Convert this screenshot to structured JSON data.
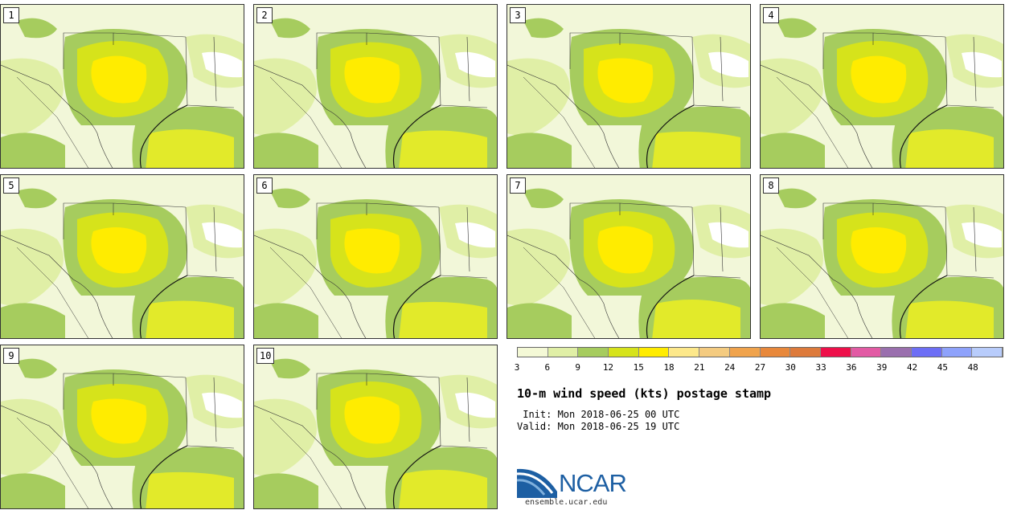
{
  "stamps": [
    {
      "label": "1"
    },
    {
      "label": "2"
    },
    {
      "label": "3"
    },
    {
      "label": "4"
    },
    {
      "label": "5"
    },
    {
      "label": "6"
    },
    {
      "label": "7"
    },
    {
      "label": "8"
    },
    {
      "label": "9"
    },
    {
      "label": "10"
    }
  ],
  "legend": {
    "ticks": [
      "3",
      "6",
      "9",
      "12",
      "15",
      "18",
      "21",
      "24",
      "27",
      "30",
      "33",
      "36",
      "39",
      "42",
      "45",
      "48"
    ],
    "colors": [
      "#f4f9d6",
      "#e0efa6",
      "#a6cc5e",
      "#d6e31b",
      "#ffec00",
      "#fde88a",
      "#f4cb80",
      "#f0a34c",
      "#e8883b",
      "#dd7a3b",
      "#ee0f4a",
      "#e25aa4",
      "#9a6fae",
      "#6d6ef5",
      "#8ea2fb",
      "#b8ccfb"
    ]
  },
  "title": "10-m wind speed (kts) postage stamp",
  "init": " Init: Mon 2018-06-25 00 UTC",
  "valid": "Valid: Mon 2018-06-25 19 UTC",
  "logo": {
    "text": "NCAR",
    "url": "ensemble.ucar.edu"
  },
  "map_colors": {
    "background": "#f2f7d9",
    "light_green": "#e0efa6",
    "green": "#a6cc5e",
    "lime": "#d6e31b",
    "yellow": "#ffec00",
    "gulf": "#e2ea2a"
  }
}
